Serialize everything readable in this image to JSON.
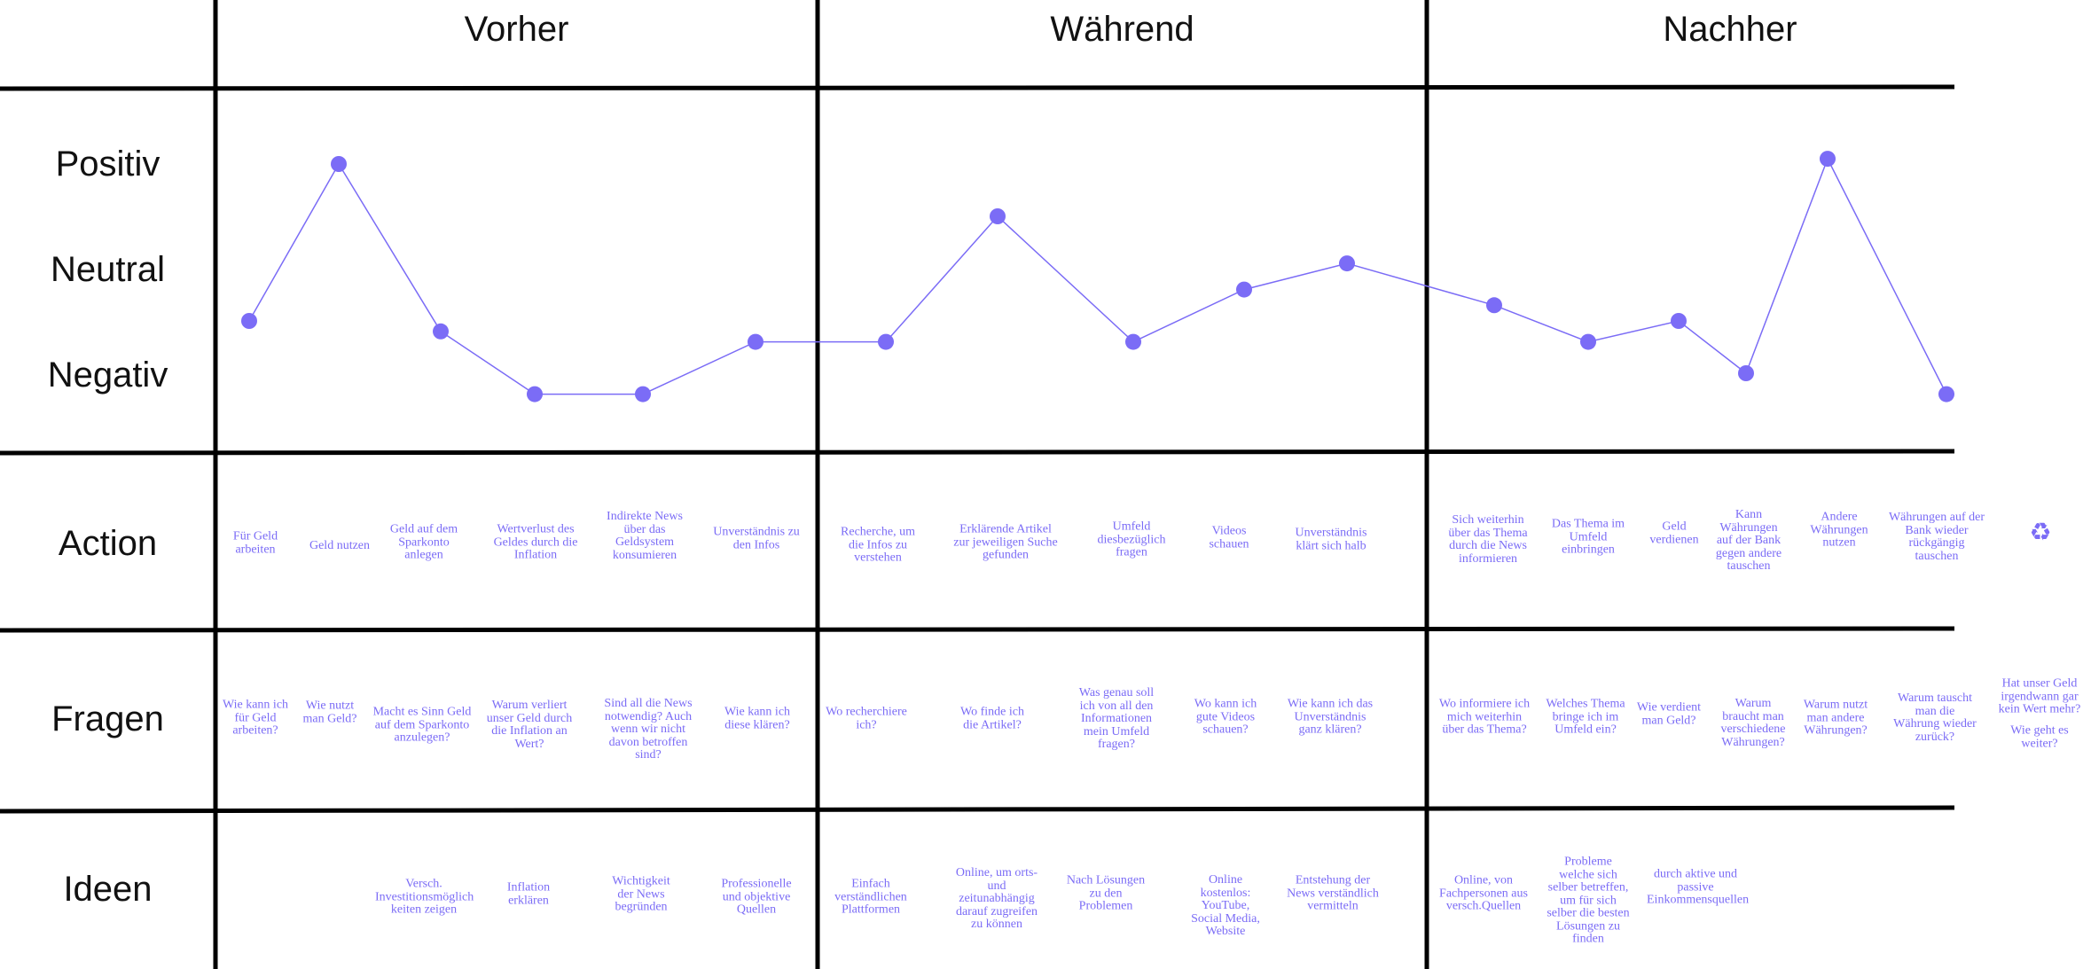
{
  "phases": [
    "Vorher",
    "Während",
    "Nachher"
  ],
  "rows": {
    "positiv": "Positiv",
    "neutral": "Neutral",
    "negativ": "Negativ",
    "action": "Action",
    "fragen": "Fragen",
    "ideen": "Ideen"
  },
  "colors": {
    "accent": "#7b6cf6",
    "line": "#000000"
  },
  "emotion_curve": {
    "levels": [
      "Negativ",
      "Neutral",
      "Positiv"
    ],
    "points": [
      -0.5,
      1.0,
      -0.6,
      -1.2,
      -1.2,
      -0.7,
      -0.7,
      0.5,
      -0.7,
      -0.2,
      0.05,
      -0.35,
      -0.7,
      -0.5,
      -1.0,
      1.05,
      -1.2
    ]
  },
  "actions": [
    "Für Geld arbeiten",
    "Geld nutzen",
    "Geld auf dem Sparkonto anlegen",
    "Wertverlust des Geldes durch die Inflation",
    "Indirekte News über das Geldsystem konsumieren",
    "Unverständnis zu den Infos",
    "Recherche, um die Infos zu verstehen",
    "Erklärende Artikel zur jeweiligen Suche gefunden",
    "Umfeld diesbezüglich fragen",
    "Videos schauen",
    "Unverständnis klärt sich halb",
    "Sich weiterhin über das Thema durch die News informieren",
    "Das Thema im Umfeld einbringen",
    "Geld verdienen",
    "Kann Währungen auf der Bank gegen andere tauschen",
    "Andere Währungen nutzen",
    "Währungen auf der Bank wieder rückgängig tauschen"
  ],
  "recycle_icon": "recycle-icon",
  "questions": [
    "Wie kann ich für Geld arbeiten?",
    "Wie nutzt man Geld?",
    "Macht es Sinn Geld auf dem Sparkonto anzulegen?",
    "Warum verliert unser Geld durch die Inflation an Wert?",
    "Sind all die News notwendig? Auch wenn wir nicht davon betroffen sind?",
    "Wie kann ich diese klären?",
    "Wo recherchiere ich?",
    "Wo finde ich die Artikel?",
    "Was genau soll ich von all den Informationen mein Umfeld fragen?",
    "Wo kann ich gute Videos schauen?",
    "Wie kann ich das Unverständnis ganz klären?",
    "Wo informiere ich mich weiterhin über das Thema?",
    "Welches Thema bringe ich im Umfeld ein?",
    "Wie verdient man Geld?",
    "Warum braucht man verschiedene Währungen?",
    "Warum nutzt man andere Währungen?",
    "Warum tauscht man die Währung wieder zurück?",
    "Hat unser Geld irgendwann gar kein Wert mehr?",
    "Wie geht es weiter?"
  ],
  "ideas": [
    "Versch. Investitionsmöglich keiten zeigen",
    "Inflation erklären",
    "Wichtigkeit der News begründen",
    "Professionelle und objektive Quellen",
    "Einfach verständlichen Plattformen",
    "Online, um orts- und zeitunabhängig darauf zugreifen zu können",
    "Nach Lösungen zu den Problemen",
    "Online kostenlos: YouTube, Social Media, Website",
    "Entstehung der News verständlich vermitteln",
    "Online, von Fachpersonen aus versch.Quellen",
    "Probleme welche sich selber betreffen, um für sich selber die besten Lösungen zu finden",
    "durch aktive und passive Einkommensquellen"
  ]
}
